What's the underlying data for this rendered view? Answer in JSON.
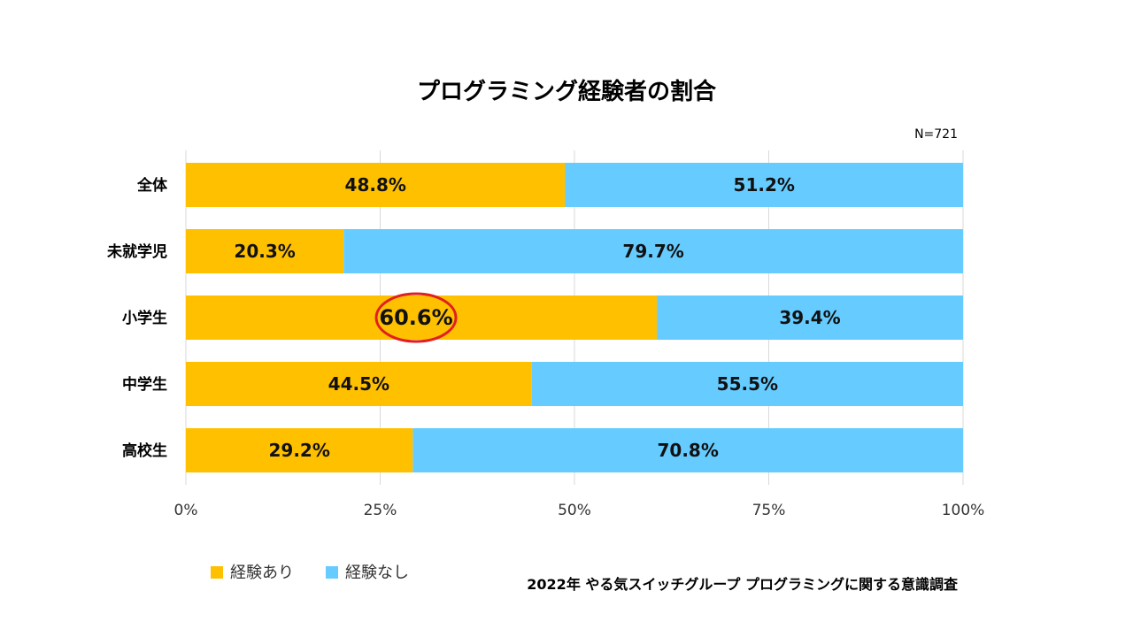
{
  "chart_data": {
    "type": "bar",
    "orientation": "horizontal",
    "stacked": true,
    "title": "プログラミング経験者の割合",
    "note": "N=721",
    "categories": [
      "全体",
      "未就学児",
      "小学生",
      "中学生",
      "高校生"
    ],
    "series": [
      {
        "name": "経験あり",
        "color": "#FFC000",
        "values": [
          48.8,
          20.3,
          60.6,
          44.5,
          29.2
        ],
        "labels": [
          "48.8%",
          "20.3%",
          "60.6%",
          "44.5%",
          "29.2%"
        ]
      },
      {
        "name": "経験なし",
        "color": "#66CCFF",
        "values": [
          51.2,
          79.7,
          39.4,
          55.5,
          70.8
        ],
        "labels": [
          "51.2%",
          "79.7%",
          "39.4%",
          "55.5%",
          "70.8%"
        ]
      }
    ],
    "xlim": [
      0,
      100
    ],
    "xticks": [
      0,
      25,
      50,
      75,
      100
    ],
    "xtick_labels": [
      "0%",
      "25%",
      "50%",
      "75%",
      "100%"
    ],
    "grid": true,
    "legend_position": "bottom-left",
    "highlight": {
      "category": "小学生",
      "series": "経験あり",
      "label": "60.6%",
      "marker": "red-ellipse"
    },
    "source": "2022年 やる気スイッチグループ プログラミングに関する意識調査"
  }
}
